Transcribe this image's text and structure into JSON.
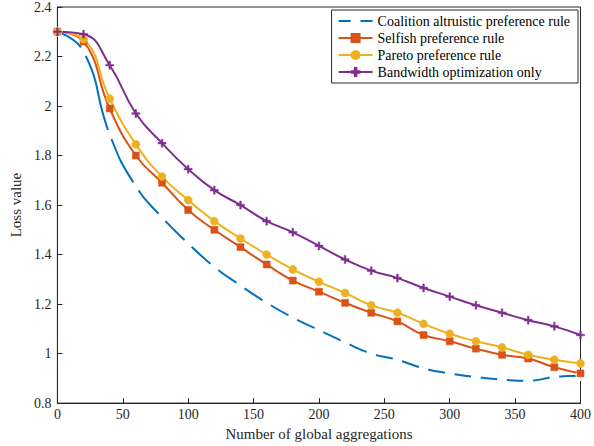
{
  "chart_data": {
    "type": "line",
    "x_label": "Number of global aggregations",
    "y_label": "Loss value",
    "x": [
      0,
      20,
      40,
      60,
      80,
      100,
      120,
      140,
      160,
      180,
      200,
      220,
      240,
      260,
      280,
      300,
      320,
      340,
      360,
      380,
      400
    ],
    "xlim": [
      0,
      400
    ],
    "xticks": [
      0,
      50,
      100,
      150,
      200,
      250,
      300,
      350,
      400
    ],
    "ylim": [
      0.8,
      2.4
    ],
    "yticks": [
      0.8,
      1,
      1.2,
      1.4,
      1.6,
      1.8,
      2,
      2.2,
      2.4
    ],
    "grid": false,
    "legend": "upper right",
    "series": [
      {
        "name": "Coalition altruistic preference rule",
        "color": "#0072bd",
        "marker": "hollow-circle",
        "values": [
          2.3,
          2.22,
          1.885,
          1.675,
          1.55,
          1.445,
          1.35,
          1.275,
          1.205,
          1.145,
          1.095,
          1.045,
          1.0,
          0.975,
          0.94,
          0.92,
          0.905,
          0.895,
          0.89,
          0.905,
          0.91
        ]
      },
      {
        "name": "Selfish preference rule",
        "color": "#d95319",
        "marker": "square",
        "values": [
          2.3,
          2.26,
          1.99,
          1.8,
          1.69,
          1.58,
          1.5,
          1.43,
          1.36,
          1.295,
          1.25,
          1.205,
          1.165,
          1.13,
          1.075,
          1.05,
          1.02,
          0.995,
          0.98,
          0.945,
          0.92
        ]
      },
      {
        "name": "Pareto preference rule",
        "color": "#edb120",
        "marker": "circle",
        "values": [
          2.3,
          2.27,
          2.03,
          1.845,
          1.715,
          1.62,
          1.535,
          1.465,
          1.4,
          1.34,
          1.29,
          1.245,
          1.195,
          1.165,
          1.12,
          1.08,
          1.05,
          1.025,
          0.995,
          0.975,
          0.96
        ]
      },
      {
        "name": "Bandwidth optimization only",
        "color": "#7e2f8e",
        "marker": "plus",
        "values": [
          2.3,
          2.29,
          2.165,
          1.97,
          1.85,
          1.745,
          1.66,
          1.6,
          1.535,
          1.49,
          1.435,
          1.38,
          1.335,
          1.305,
          1.265,
          1.23,
          1.195,
          1.165,
          1.135,
          1.11,
          1.075
        ]
      }
    ]
  }
}
